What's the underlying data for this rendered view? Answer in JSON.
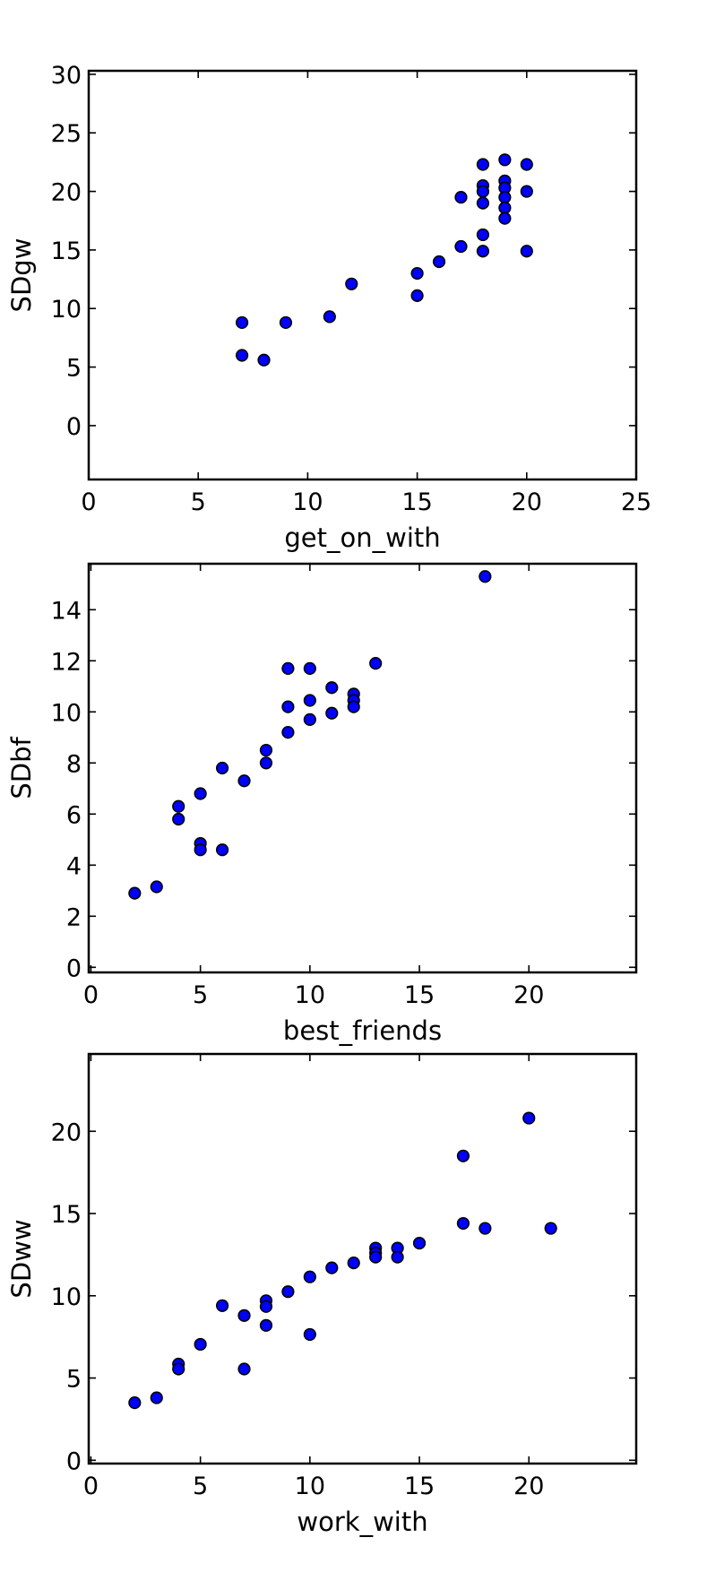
{
  "chart_data": [
    {
      "type": "scatter",
      "xlabel": "get_on_with",
      "ylabel": "SDgw",
      "xlim": [
        0,
        25
      ],
      "ylim": [
        -4.6,
        30.3
      ],
      "xticks": [
        0,
        5,
        10,
        15,
        20,
        25
      ],
      "yticks": [
        0,
        5,
        10,
        15,
        20,
        25,
        30
      ],
      "points": [
        [
          7,
          8.8
        ],
        [
          7,
          6.0
        ],
        [
          8,
          5.6
        ],
        [
          9,
          8.8
        ],
        [
          11,
          9.3
        ],
        [
          12,
          12.1
        ],
        [
          15,
          13.0
        ],
        [
          15,
          11.1
        ],
        [
          16,
          14.0
        ],
        [
          17,
          15.3
        ],
        [
          17,
          19.5
        ],
        [
          18,
          22.3
        ],
        [
          18,
          20.5
        ],
        [
          18,
          20.0
        ],
        [
          18,
          19.0
        ],
        [
          18,
          16.3
        ],
        [
          18,
          14.9
        ],
        [
          19,
          22.7
        ],
        [
          19,
          20.9
        ],
        [
          19,
          20.3
        ],
        [
          19,
          19.5
        ],
        [
          19,
          18.6
        ],
        [
          19,
          17.7
        ],
        [
          20,
          22.3
        ],
        [
          20,
          20.0
        ],
        [
          20,
          14.9
        ]
      ]
    },
    {
      "type": "scatter",
      "xlabel": "best_friends",
      "ylabel": "SDbf",
      "xlim": [
        -0.1,
        24.9
      ],
      "ylim": [
        -0.2,
        15.8
      ],
      "xticks": [
        0,
        5,
        10,
        15,
        20
      ],
      "yticks": [
        0,
        2,
        4,
        6,
        8,
        10,
        12,
        14
      ],
      "points": [
        [
          2,
          2.9
        ],
        [
          3,
          3.15
        ],
        [
          4,
          6.3
        ],
        [
          4,
          5.8
        ],
        [
          5,
          6.8
        ],
        [
          5,
          4.85
        ],
        [
          5,
          4.6
        ],
        [
          6,
          7.8
        ],
        [
          6,
          4.6
        ],
        [
          7,
          7.3
        ],
        [
          8,
          8.5
        ],
        [
          8,
          8.0
        ],
        [
          9,
          11.7
        ],
        [
          9,
          10.2
        ],
        [
          9,
          9.2
        ],
        [
          10,
          11.7
        ],
        [
          10,
          10.45
        ],
        [
          10,
          9.7
        ],
        [
          11,
          10.95
        ],
        [
          11,
          9.95
        ],
        [
          12,
          10.7
        ],
        [
          12,
          10.45
        ],
        [
          12,
          10.2
        ],
        [
          13,
          11.9
        ],
        [
          18,
          15.3
        ]
      ]
    },
    {
      "type": "scatter",
      "xlabel": "work_with",
      "ylabel": "SDww",
      "xlim": [
        -0.1,
        24.9
      ],
      "ylim": [
        -0.2,
        24.7
      ],
      "xticks": [
        0,
        5,
        10,
        15,
        20
      ],
      "yticks": [
        0,
        5,
        10,
        15,
        20
      ],
      "points": [
        [
          2,
          3.5
        ],
        [
          3,
          3.8
        ],
        [
          4,
          5.85
        ],
        [
          4,
          5.55
        ],
        [
          5,
          7.05
        ],
        [
          6,
          9.4
        ],
        [
          7,
          8.8
        ],
        [
          7,
          5.55
        ],
        [
          8,
          9.7
        ],
        [
          8,
          9.35
        ],
        [
          8,
          8.2
        ],
        [
          9,
          10.25
        ],
        [
          10,
          11.15
        ],
        [
          10,
          7.65
        ],
        [
          11,
          11.7
        ],
        [
          12,
          12.0
        ],
        [
          13,
          12.9
        ],
        [
          13,
          12.6
        ],
        [
          13,
          12.35
        ],
        [
          14,
          12.9
        ],
        [
          14,
          12.35
        ],
        [
          15,
          13.2
        ],
        [
          17,
          18.5
        ],
        [
          17,
          14.4
        ],
        [
          18,
          14.1
        ],
        [
          20,
          20.8
        ],
        [
          21,
          14.1
        ]
      ]
    }
  ]
}
